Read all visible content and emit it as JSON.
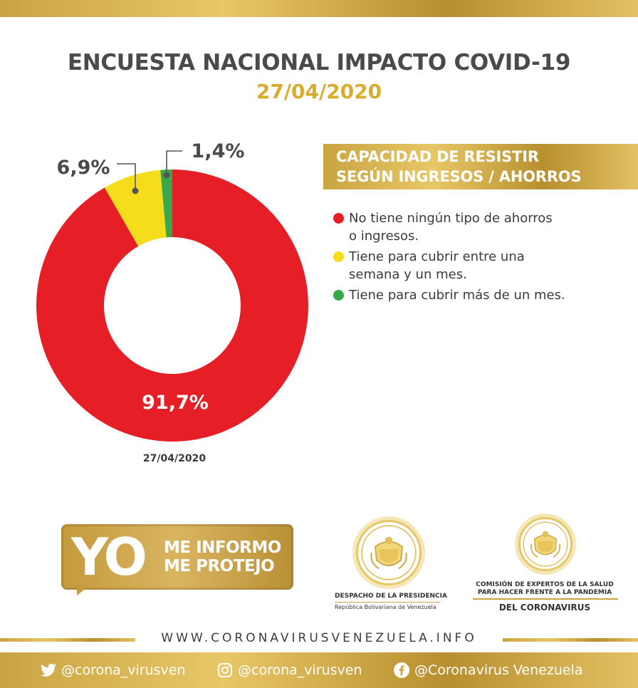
{
  "header": {
    "title": "ENCUESTA NACIONAL IMPACTO COVID-19",
    "date": "27/04/2020"
  },
  "chart_data": {
    "type": "pie",
    "donut": true,
    "title": "CAPACIDAD DE RESISTIR SEGÚN INGRESOS / AHORROS",
    "categories": [
      "No tiene ningún tipo de ahorros o ingresos.",
      "Tiene para cubrir entre una semana y un mes.",
      "Tiene para cubrir más de un mes."
    ],
    "values": [
      91.7,
      6.9,
      1.4
    ],
    "data_labels": [
      "91,7%",
      "6,9%",
      "1,4%"
    ],
    "colors": [
      "#e61e26",
      "#f6dd1b",
      "#39a84a"
    ],
    "legend_placement": "right",
    "date_label": "27/04/2020"
  },
  "legend": {
    "header_line1": "CAPACIDAD DE RESISTIR",
    "header_line2": "SEGÚN INGRESOS / AHORROS",
    "items": [
      {
        "line1": "No tiene ningún tipo de ahorros",
        "line2": "o ingresos.",
        "color": "#e61e26"
      },
      {
        "line1": "Tiene para cubrir entre una",
        "line2": "semana y un mes.",
        "color": "#f6dd1b"
      },
      {
        "line1": "Tiene para cubrir más de un mes.",
        "line2": "",
        "color": "#39a84a"
      }
    ]
  },
  "badge": {
    "yo": "YO",
    "line1": "ME INFORMO",
    "line2": "ME PROTEJO"
  },
  "logos": {
    "despacho_line1": "DESPACHO DE LA PRESIDENCIA",
    "despacho_line2": "República Bolivariana de Venezuela",
    "comision_line1": "COMISIÓN DE EXPERTOS DE LA SALUD",
    "comision_line2": "PARA HACER FRENTE A LA PANDEMIA",
    "comision_line3": "DEL CORONAVIRUS"
  },
  "footer": {
    "website": "WWW.CORONAVIRUSVENEZUELA.INFO",
    "twitter": "@corona_virusven",
    "instagram": "@corona_virusven",
    "facebook": "@Coronavirus Venezuela",
    "twitter_icon": "twitter-icon",
    "instagram_icon": "instagram-icon",
    "facebook_icon": "facebook-icon"
  }
}
